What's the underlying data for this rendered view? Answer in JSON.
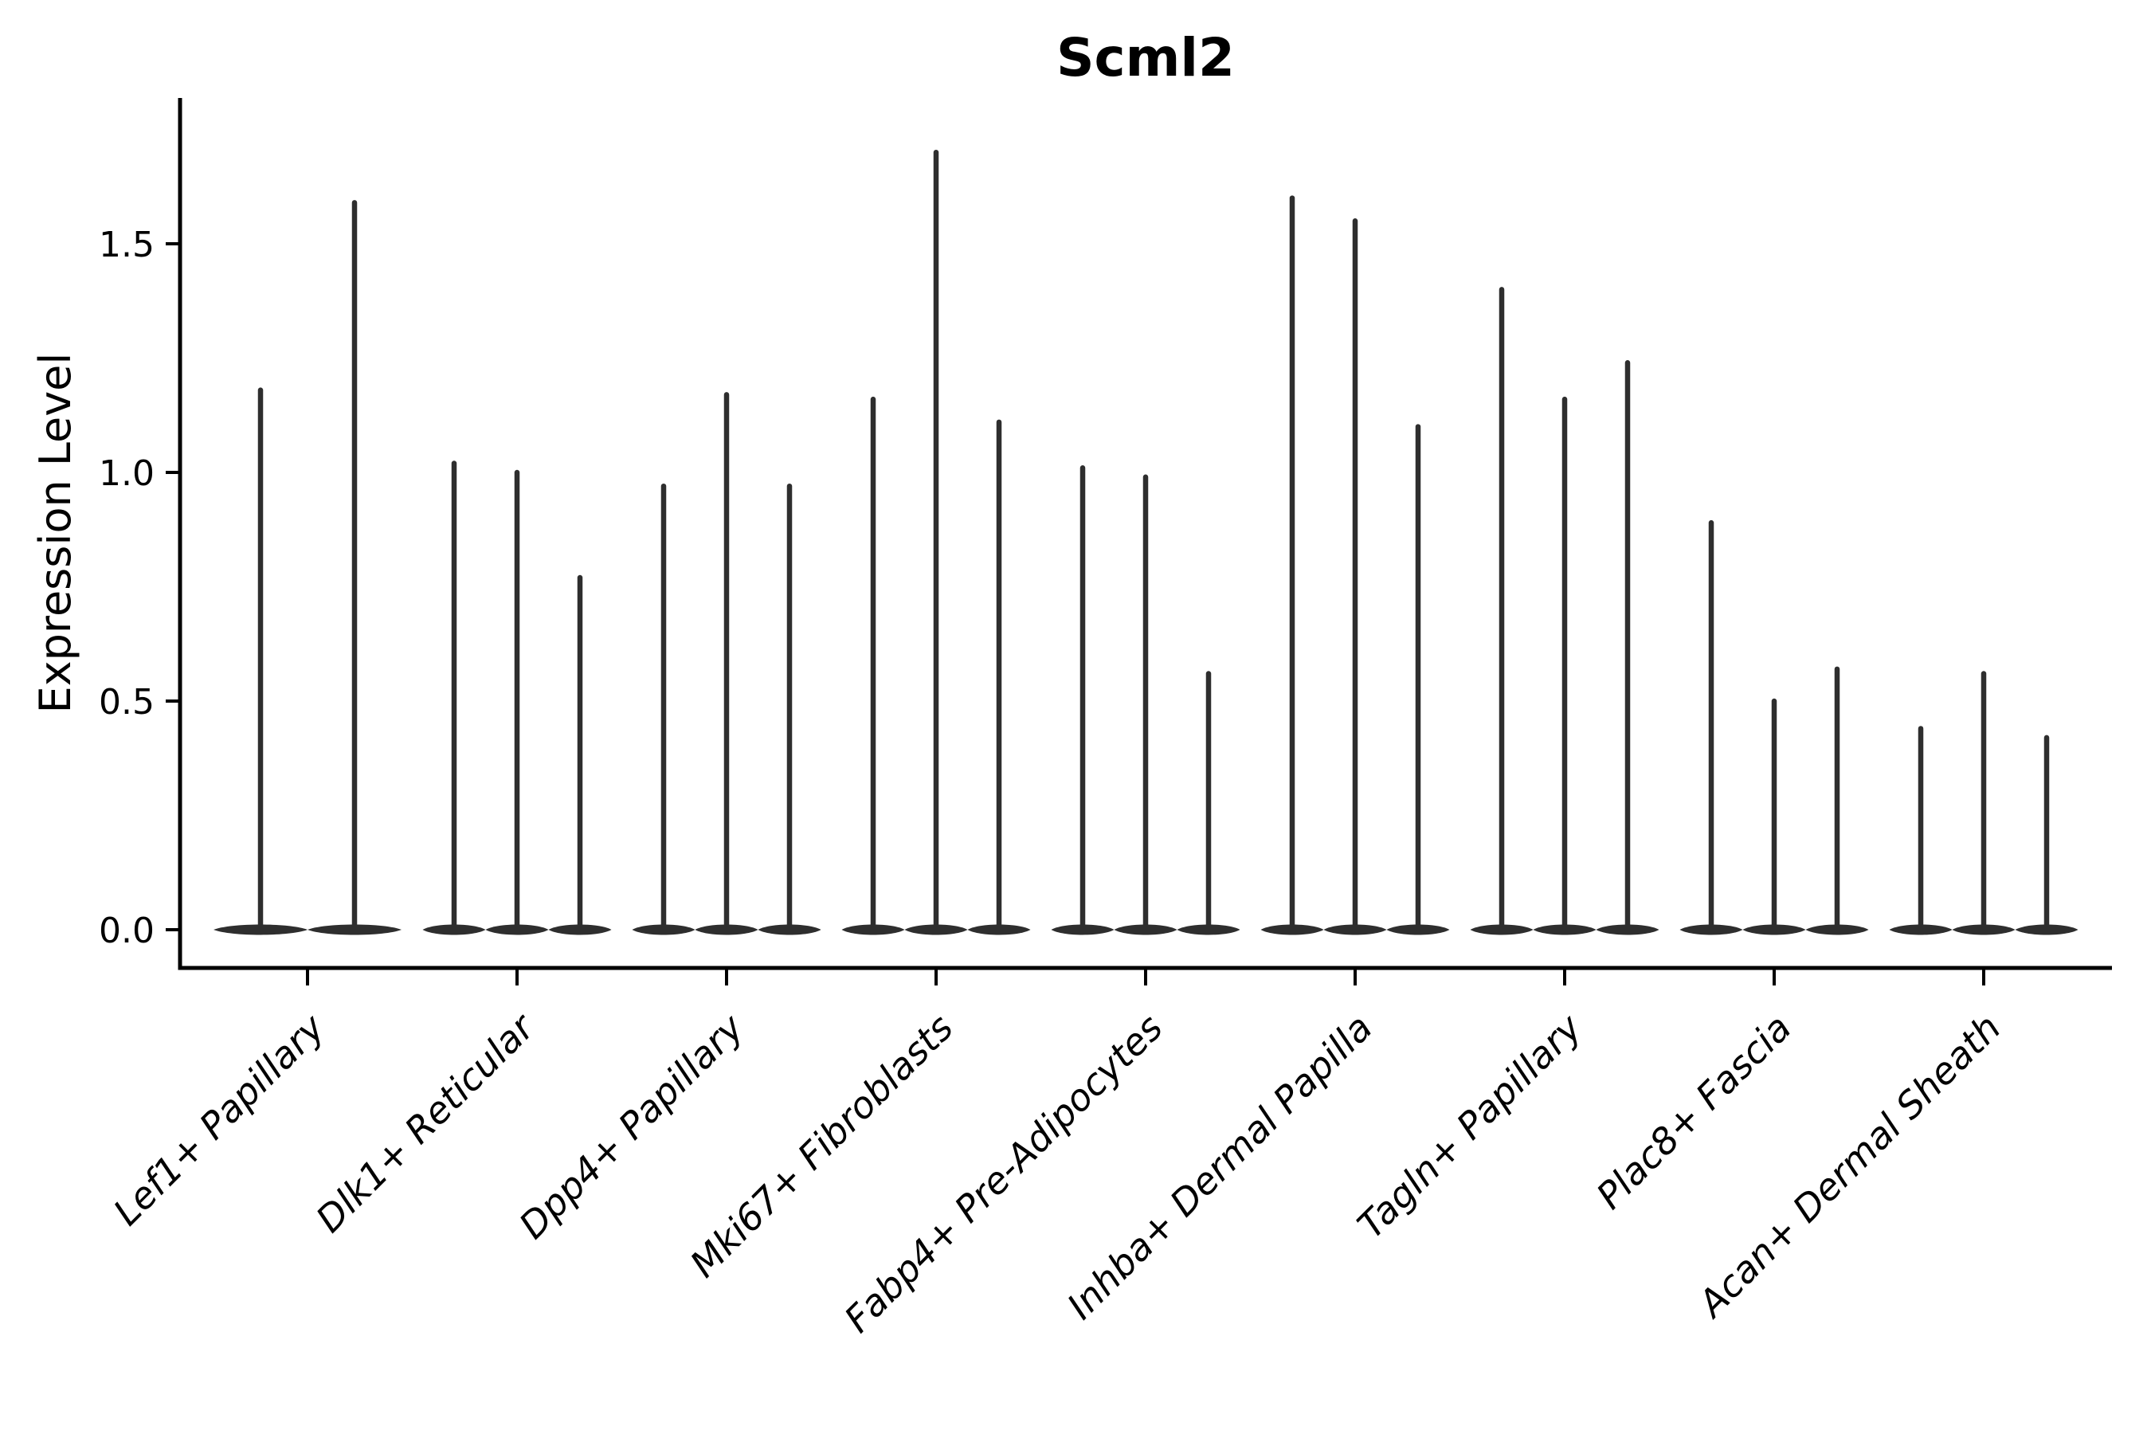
{
  "figure": {
    "background": "#ffffff"
  },
  "chart_data": {
    "type": "violin",
    "title": "Scml2",
    "ylabel": "Expression Level",
    "xlabel": "",
    "grid": false,
    "legend_position": "none",
    "ylim": [
      -0.09,
      1.82
    ],
    "yticks": [
      0.0,
      0.5,
      1.0,
      1.5
    ],
    "ytick_labels": [
      "0.0",
      "0.5",
      "1.0",
      "1.5"
    ],
    "categories": [
      "Lef1+ Papillary",
      "Dlk1+ Reticular",
      "Dpp4+ Papillary",
      "Mki67+ Fibroblasts",
      "Fabp4+ Pre-Adipocytes",
      "Inhba+ Dermal Papilla",
      "Tagln+ Papillary",
      "Plac8+ Fascia",
      "Acan+ Dermal Sheath"
    ],
    "groups": [
      {
        "label": "Lef1+ Papillary",
        "violin_max_expression": [
          1.18,
          1.59
        ]
      },
      {
        "label": "Dlk1+ Reticular",
        "violin_max_expression": [
          1.02,
          1.0,
          0.77
        ]
      },
      {
        "label": "Dpp4+ Papillary",
        "violin_max_expression": [
          0.97,
          1.17,
          0.97
        ]
      },
      {
        "label": "Mki67+ Fibroblasts",
        "violin_max_expression": [
          1.16,
          1.7,
          1.11
        ]
      },
      {
        "label": "Fabp4+ Pre-Adipocytes",
        "violin_max_expression": [
          1.01,
          0.99,
          0.56
        ]
      },
      {
        "label": "Inhba+ Dermal Papilla",
        "violin_max_expression": [
          1.6,
          1.55,
          1.1
        ]
      },
      {
        "label": "Tagln+ Papillary",
        "violin_max_expression": [
          1.4,
          1.16,
          1.24
        ]
      },
      {
        "label": "Plac8+ Fascia",
        "violin_max_expression": [
          0.89,
          0.5,
          0.57
        ]
      },
      {
        "label": "Acan+ Dermal Sheath",
        "violin_max_expression": [
          0.44,
          0.56,
          0.42
        ]
      }
    ],
    "note": "Zero-inflated expression violins: each violin is maximally wide at expression 0 (flat lens base on the baseline) with a thin density spike rising to its maximum expression value.",
    "colors": {
      "violin": "#2e2e2e",
      "axis": "#000000",
      "text": "#000000"
    }
  }
}
